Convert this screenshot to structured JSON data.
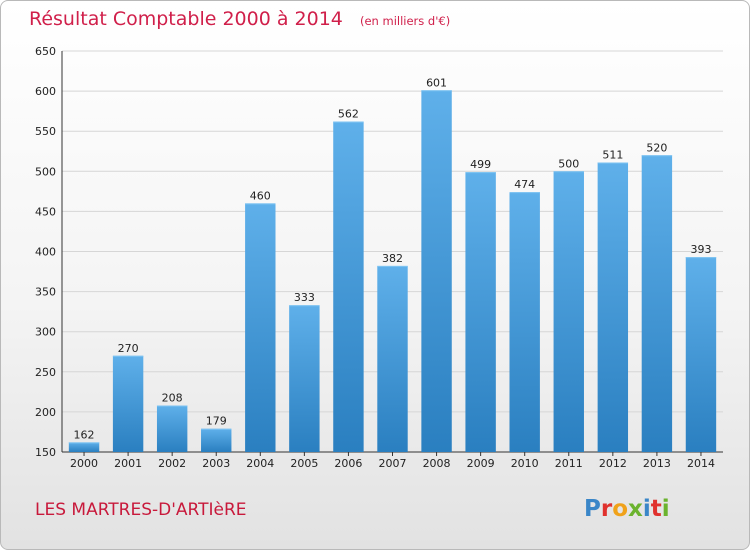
{
  "chart_data": {
    "type": "bar",
    "title": "Résultat Comptable 2000 à 2014",
    "subtitle": "(en milliers d'€)",
    "categories": [
      "2000",
      "2001",
      "2002",
      "2003",
      "2004",
      "2005",
      "2006",
      "2007",
      "2008",
      "2009",
      "2010",
      "2011",
      "2012",
      "2013",
      "2014"
    ],
    "values": [
      162,
      270,
      208,
      179,
      460,
      333,
      562,
      382,
      601,
      499,
      474,
      500,
      511,
      520,
      393
    ],
    "ylim": [
      150,
      650
    ],
    "yticks": [
      150,
      200,
      250,
      300,
      350,
      400,
      450,
      500,
      550,
      600,
      650
    ],
    "grid": true,
    "xlabel": "",
    "ylabel": "",
    "colors": {
      "bar_light": "#5fb0ea",
      "bar_dark": "#2a7fc0",
      "title": "#d01f4a"
    }
  },
  "footer": {
    "commune": "LES MARTRES-D'ARTIèRE",
    "logo": "Proxiti"
  }
}
